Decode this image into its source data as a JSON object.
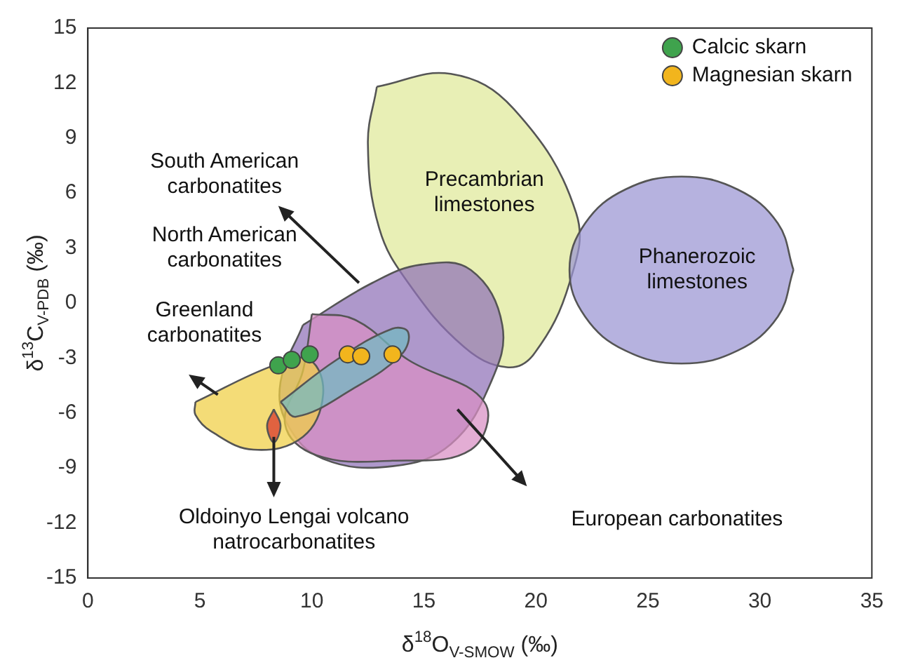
{
  "chart_data": {
    "type": "scatter",
    "xlabel": "δ$^{18}$O$_{V-SMOW}$ (‰)",
    "ylabel": "δ$^{13}$C$_{V-PDB}$ (‰)",
    "xlim": [
      0,
      35
    ],
    "ylim": [
      -15,
      15
    ],
    "xticks": [
      0,
      5,
      10,
      15,
      20,
      25,
      30,
      35
    ],
    "yticks": [
      -15,
      -12,
      -9,
      -6,
      -3,
      0,
      3,
      6,
      9,
      12,
      15
    ],
    "grid": false,
    "legend": "top right",
    "marker": "circle",
    "series": [
      {
        "type": "area",
        "marker": "none",
        "color": "#dfe99a",
        "x": [
          12.9,
          16.2,
          19,
          21.8,
          21.5,
          19.9,
          18.7,
          16.8,
          14.3,
          13,
          12.5,
          12.9
        ],
        "values": [
          11.8,
          12.5,
          10.6,
          4.9,
          1.1,
          -2.8,
          -3.5,
          -2.4,
          1.1,
          4.1,
          8.7,
          11.8
        ]
      },
      {
        "type": "area",
        "marker": "none",
        "color": "#9c96d4",
        "x": [
          31.5,
          30.8,
          29,
          26.5,
          24,
          22.2,
          21.5,
          22.2,
          24,
          26.5,
          29,
          30.8,
          31.5
        ],
        "values": [
          1.8,
          4.35,
          6.2,
          6.9,
          6.2,
          4.35,
          1.8,
          -0.75,
          -2.6,
          -3.3,
          -2.6,
          -0.75,
          1.8
        ]
      },
      {
        "type": "area",
        "marker": "none",
        "color": "#9173b8",
        "x": [
          9.6,
          12.7,
          14.9,
          17.1,
          18.5,
          18,
          16.2,
          13.6,
          10.5,
          8.9,
          8.6,
          9.6
        ],
        "values": [
          -1.2,
          1.1,
          2.1,
          1.8,
          -1.2,
          -4.3,
          -7.7,
          -8.9,
          -8.5,
          -6.6,
          -4.3,
          -1.2
        ]
      },
      {
        "type": "area",
        "marker": "none",
        "color": "#d98fc4",
        "x": [
          10,
          11.9,
          14.3,
          17.7,
          17.1,
          13.6,
          10.2,
          8.8,
          9.6,
          10
        ],
        "values": [
          -0.6,
          -0.9,
          -3.1,
          -5.4,
          -8,
          -8.6,
          -8.3,
          -6.6,
          -3.7,
          -0.6
        ]
      },
      {
        "type": "area",
        "marker": "none",
        "color": "#f0cf45",
        "x": [
          4.8,
          8.3,
          9.9,
          10.5,
          9.6,
          7.4,
          5.5,
          4.8,
          4.8
        ],
        "values": [
          -5.4,
          -3.4,
          -3.1,
          -5,
          -7.3,
          -8,
          -7,
          -6.1,
          -5.4
        ]
      },
      {
        "type": "area",
        "marker": "none",
        "color": "#72b9c2",
        "x": [
          8.6,
          11.1,
          13.6,
          14.3,
          14,
          11.8,
          9.3,
          8.6
        ],
        "values": [
          -5.4,
          -3.1,
          -1.4,
          -1.6,
          -2.8,
          -4.7,
          -6.2,
          -5.4
        ]
      },
      {
        "type": "area",
        "marker": "none",
        "color": "#d9352b",
        "x": [
          8.3,
          8.6,
          8.3,
          8,
          8.3
        ],
        "values": [
          -5.8,
          -6.7,
          -7.6,
          -6.7,
          -5.8
        ]
      },
      {
        "type": "scatter",
        "name": "Calcic skarn",
        "color": "#3fa34d",
        "x": [
          8.5,
          9.1,
          9.9
        ],
        "values": [
          -3.4,
          -3.1,
          -2.8
        ]
      },
      {
        "type": "scatter",
        "name": "Magnesian skarn",
        "color": "#f2b51d",
        "x": [
          11.6,
          12.2,
          13.6
        ],
        "values": [
          -2.8,
          -2.9,
          -2.8
        ]
      }
    ],
    "annotations": [
      "Precambrian\nlimestones",
      "Phanerozoic\nlimestones",
      "South American\ncarbonatites",
      "North American\ncarbonatites",
      "Greenland\ncarbonatites",
      "Oldoinyo Lengai volcano\nnatrocarbonatites",
      "European carbonatites"
    ]
  }
}
